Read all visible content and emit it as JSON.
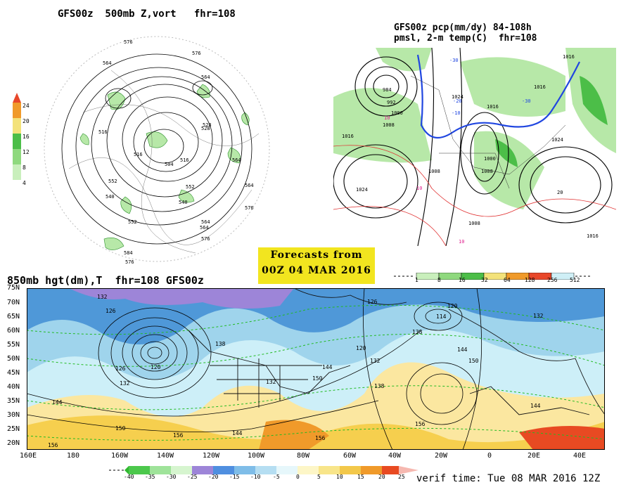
{
  "polar_map": {
    "title": "GFS00z  500mb Z,vort   fhr=108",
    "colorbar_ticks": [
      "24",
      "20",
      "16",
      "12",
      "8",
      "4"
    ],
    "contour_labels": [
      "576",
      "576",
      "564",
      "564",
      "564",
      "552",
      "540",
      "540",
      "528",
      "516",
      "516",
      "504",
      "516",
      "552",
      "564",
      "576",
      "576",
      "552",
      "564",
      "576",
      "584",
      "564",
      "528"
    ]
  },
  "na_map": {
    "title_line1": "GFS00z pcp(mm/dy) 84-108h",
    "title_line2": "pmsl, 2-m temp(C)  fhr=108",
    "contour_labels": [
      "984",
      "992",
      "1000",
      "1008",
      "1016",
      "1024",
      "1024",
      "1016",
      "1008",
      "1000",
      "1008",
      "1016",
      "1024",
      "1008",
      "1016",
      "1016"
    ],
    "temp_labels": [
      "-30",
      "-30",
      "-20",
      "-10",
      "10",
      "10",
      "10",
      "20"
    ],
    "colorbar_ticks": [
      "1",
      "8",
      "16",
      "32",
      "64",
      "128",
      "256",
      "512"
    ]
  },
  "forecast_box": {
    "line1": "Forecasts from",
    "line2": "00Z 04 MAR 2016"
  },
  "big_map": {
    "title": "850mb hgt(dm),T  fhr=108 GFS00z",
    "lat_labels": [
      "75N",
      "70N",
      "65N",
      "60N",
      "55N",
      "50N",
      "45N",
      "40N",
      "35N",
      "30N",
      "25N",
      "20N"
    ],
    "lon_labels": [
      "160E",
      "180",
      "160W",
      "140W",
      "120W",
      "100W",
      "80W",
      "60W",
      "40W",
      "20W",
      "0",
      "20E",
      "40E"
    ],
    "contour_labels": [
      "132",
      "126",
      "126",
      "120",
      "132",
      "144",
      "150",
      "156",
      "156",
      "144",
      "138",
      "132",
      "144",
      "150",
      "120",
      "132",
      "126",
      "120",
      "114",
      "138",
      "150",
      "138",
      "156",
      "144",
      "144",
      "132",
      "156"
    ],
    "colorbar_ticks": [
      "-40",
      "-35",
      "-30",
      "-25",
      "-20",
      "-15",
      "-10",
      "-5",
      "0",
      "5",
      "10",
      "15",
      "20",
      "25"
    ]
  },
  "verif_time": "verif time: Tue 08 MAR 2016 12Z"
}
